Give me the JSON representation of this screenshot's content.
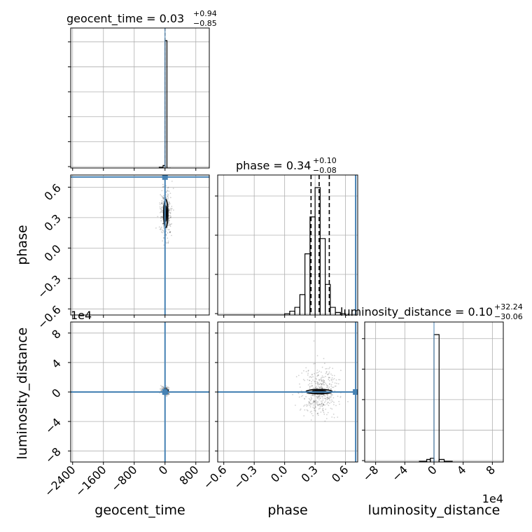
{
  "chart_data": {
    "type": "corner",
    "parameters": [
      "geocent_time",
      "phase",
      "luminosity_distance"
    ],
    "titles": [
      {
        "param": "geocent_time",
        "prefix": "geocent_time = ",
        "median": "0.03",
        "plus": "+0.94",
        "minus": "−0.85"
      },
      {
        "param": "phase",
        "prefix": "phase = ",
        "median": "0.34",
        "plus": "+0.10",
        "minus": "−0.08"
      },
      {
        "param": "luminosity_distance",
        "prefix": "luminosity_distance = ",
        "median": "0.10",
        "plus": "+32.24",
        "minus": "−30.06"
      }
    ],
    "axes": {
      "geocent_time": {
        "label": "geocent_time",
        "range": [
          -2450,
          1150
        ],
        "ticks": [
          -2400,
          -1600,
          -800,
          0,
          800
        ],
        "tick_labels": [
          "−2400",
          "−1600",
          "−800",
          "0",
          "800"
        ]
      },
      "phase": {
        "label": "phase",
        "range": [
          -0.66,
          0.72
        ],
        "ticks": [
          -0.6,
          -0.3,
          0.0,
          0.3,
          0.6
        ],
        "tick_labels": [
          "−0.6",
          "−0.3",
          "0.0",
          "0.3",
          "0.6"
        ]
      },
      "luminosity_distance": {
        "label": "luminosity_distance",
        "range": [
          -95000,
          95000
        ],
        "ticks": [
          -80000,
          -40000,
          0,
          40000,
          80000
        ],
        "tick_labels": [
          "−8",
          "−4",
          "0",
          "4",
          "8"
        ],
        "offset_text": "1e4"
      }
    },
    "truths": {
      "geocent_time": 0,
      "phase": 0.7,
      "luminosity_distance": 0
    },
    "histograms": {
      "geocent_time": {
        "bin_edges": [
          -150,
          -50,
          0,
          50,
          100,
          150
        ],
        "counts": [
          0.005,
          0.02,
          1.0,
          0,
          0
        ]
      },
      "phase": {
        "bin_edges": [
          -0.6,
          0.0,
          0.05,
          0.1,
          0.15,
          0.2,
          0.25,
          0.3,
          0.35,
          0.4,
          0.45,
          0.5,
          0.55,
          0.6,
          0.65,
          0.7
        ],
        "counts": [
          0,
          0.01,
          0.03,
          0.06,
          0.16,
          0.48,
          0.77,
          1.0,
          0.6,
          0.24,
          0.06,
          0.02,
          0.01,
          0,
          0
        ]
      },
      "luminosity_distance": {
        "bin_edges": [
          -20000,
          -10000,
          -5000,
          0,
          7000,
          14000,
          25000
        ],
        "counts": [
          0.005,
          0.02,
          0.03,
          1.0,
          0.02,
          0.005
        ]
      }
    },
    "quantiles": {
      "geocent_time": [
        -0.82,
        0.03,
        0.97
      ],
      "phase": [
        0.26,
        0.34,
        0.44
      ],
      "luminosity_distance": [
        -29960,
        100,
        32340
      ]
    },
    "contours_2d": {
      "phase_vs_geocent_time": {
        "center": [
          20,
          0.34
        ],
        "half_width": [
          55,
          0.14
        ]
      },
      "luminosity_distance_vs_geocent_time": {
        "center": [
          20,
          1500
        ],
        "half_width": [
          60,
          2500
        ]
      },
      "luminosity_distance_vs_phase": {
        "center": [
          0.34,
          500
        ],
        "half_width": [
          0.13,
          3000
        ]
      }
    },
    "grid": true
  }
}
